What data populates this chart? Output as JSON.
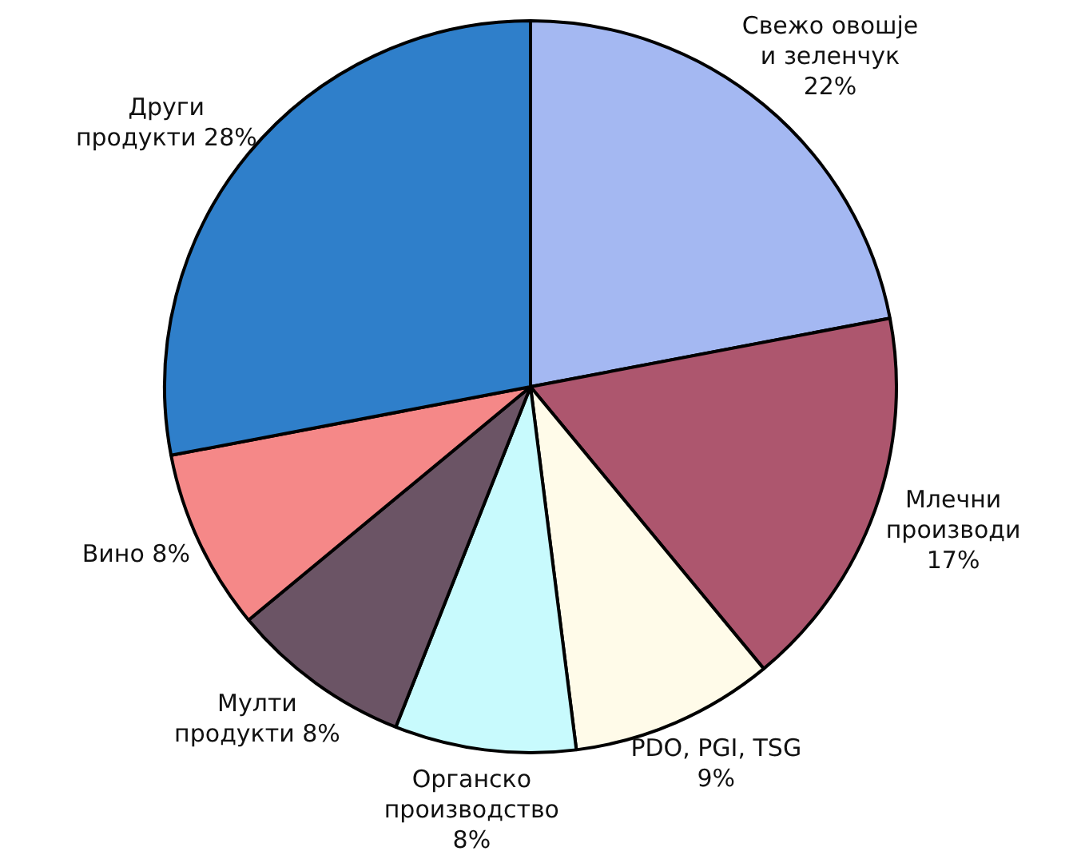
{
  "chart_data": {
    "type": "pie",
    "categories": [
      "Свежо овошје и зеленчук",
      "Млечни производи",
      "PDO, PGI, TSG",
      "Органско производство",
      "Мулти продукти",
      "Вино",
      "Други продукти"
    ],
    "values": [
      22,
      17,
      9,
      8,
      8,
      8,
      28
    ],
    "value_labels": [
      "22%",
      "17%",
      "9%",
      "8%",
      "8%",
      "8%",
      "28%"
    ],
    "colors": [
      "#a4b8f2",
      "#ad566e",
      "#fffbe9",
      "#c8fafd",
      "#6b5465",
      "#f58888",
      "#2f7fca"
    ],
    "legend": false
  }
}
